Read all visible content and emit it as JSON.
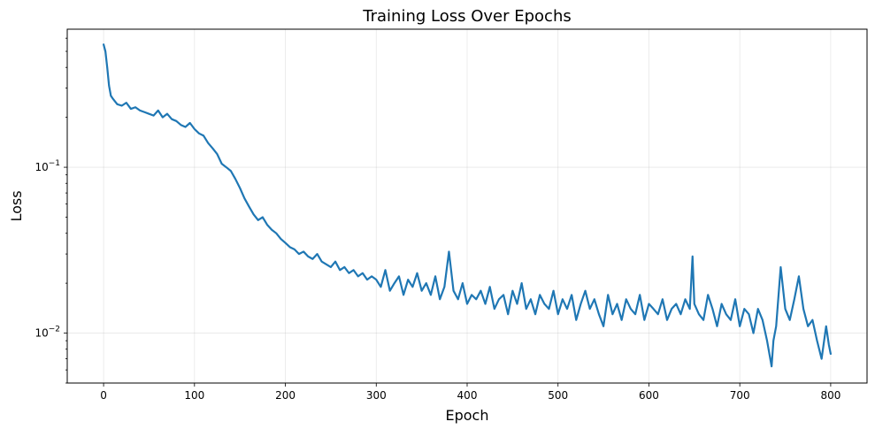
{
  "chart_data": {
    "type": "line",
    "title": "Training Loss Over Epochs",
    "xlabel": "Epoch",
    "ylabel": "Loss",
    "xlim": [
      -40,
      840
    ],
    "ylim": [
      0.005,
      0.68
    ],
    "yscale": "log",
    "grid": true,
    "series_color": "#1f77b4",
    "x_ticks": [
      {
        "value": 0,
        "label": "0"
      },
      {
        "value": 100,
        "label": "100"
      },
      {
        "value": 200,
        "label": "200"
      },
      {
        "value": 300,
        "label": "300"
      },
      {
        "value": 400,
        "label": "400"
      },
      {
        "value": 500,
        "label": "500"
      },
      {
        "value": 600,
        "label": "600"
      },
      {
        "value": 700,
        "label": "700"
      },
      {
        "value": 800,
        "label": "800"
      }
    ],
    "y_ticks": [
      {
        "value": 0.1,
        "label_base": "10",
        "label_exp": "−1"
      },
      {
        "value": 0.01,
        "label_base": "10",
        "label_exp": "−2"
      }
    ],
    "series": [
      {
        "x": [
          0,
          2,
          4,
          6,
          8,
          10,
          15,
          20,
          25,
          30,
          35,
          40,
          45,
          50,
          55,
          60,
          65,
          70,
          75,
          80,
          85,
          90,
          95,
          100,
          105,
          110,
          115,
          120,
          125,
          130,
          135,
          140,
          145,
          150,
          155,
          160,
          165,
          170,
          175,
          180,
          185,
          190,
          195,
          200,
          205,
          210,
          215,
          220,
          225,
          230,
          235,
          240,
          245,
          250,
          255,
          260,
          265,
          270,
          275,
          280,
          285,
          290,
          295,
          300,
          305,
          310,
          315,
          320,
          325,
          330,
          335,
          340,
          345,
          350,
          355,
          360,
          365,
          370,
          375,
          380,
          385,
          390,
          395,
          400,
          405,
          410,
          415,
          420,
          425,
          430,
          435,
          440,
          445,
          450,
          455,
          460,
          465,
          470,
          475,
          480,
          485,
          490,
          495,
          500,
          505,
          510,
          515,
          520,
          525,
          530,
          535,
          540,
          545,
          550,
          555,
          560,
          565,
          570,
          575,
          580,
          585,
          590,
          595,
          600,
          605,
          610,
          615,
          620,
          625,
          630,
          635,
          640,
          645,
          648,
          650,
          655,
          660,
          665,
          670,
          675,
          680,
          685,
          690,
          695,
          700,
          705,
          710,
          715,
          720,
          725,
          730,
          735,
          737,
          740,
          745,
          750,
          755,
          760,
          765,
          770,
          775,
          780,
          785,
          790,
          795,
          798,
          800
        ],
        "y": [
          0.55,
          0.5,
          0.4,
          0.31,
          0.27,
          0.26,
          0.24,
          0.235,
          0.245,
          0.225,
          0.23,
          0.22,
          0.215,
          0.21,
          0.205,
          0.22,
          0.2,
          0.21,
          0.195,
          0.19,
          0.18,
          0.175,
          0.185,
          0.17,
          0.16,
          0.155,
          0.14,
          0.13,
          0.12,
          0.105,
          0.1,
          0.095,
          0.085,
          0.075,
          0.065,
          0.058,
          0.052,
          0.048,
          0.05,
          0.045,
          0.042,
          0.04,
          0.037,
          0.035,
          0.033,
          0.032,
          0.03,
          0.031,
          0.029,
          0.028,
          0.03,
          0.027,
          0.026,
          0.025,
          0.027,
          0.024,
          0.025,
          0.023,
          0.024,
          0.022,
          0.023,
          0.021,
          0.022,
          0.021,
          0.019,
          0.024,
          0.018,
          0.02,
          0.022,
          0.017,
          0.021,
          0.019,
          0.023,
          0.018,
          0.02,
          0.017,
          0.022,
          0.016,
          0.019,
          0.031,
          0.018,
          0.016,
          0.02,
          0.015,
          0.017,
          0.016,
          0.018,
          0.015,
          0.019,
          0.014,
          0.016,
          0.017,
          0.013,
          0.018,
          0.015,
          0.02,
          0.014,
          0.016,
          0.013,
          0.017,
          0.015,
          0.014,
          0.018,
          0.013,
          0.016,
          0.014,
          0.017,
          0.012,
          0.015,
          0.018,
          0.014,
          0.016,
          0.013,
          0.011,
          0.017,
          0.013,
          0.015,
          0.012,
          0.016,
          0.014,
          0.013,
          0.017,
          0.012,
          0.015,
          0.014,
          0.013,
          0.016,
          0.012,
          0.014,
          0.015,
          0.013,
          0.016,
          0.014,
          0.029,
          0.015,
          0.013,
          0.012,
          0.017,
          0.014,
          0.011,
          0.015,
          0.013,
          0.012,
          0.016,
          0.011,
          0.014,
          0.013,
          0.01,
          0.014,
          0.012,
          0.009,
          0.0063,
          0.009,
          0.011,
          0.025,
          0.014,
          0.012,
          0.016,
          0.022,
          0.014,
          0.011,
          0.012,
          0.009,
          0.007,
          0.011,
          0.0085,
          0.0075
        ]
      }
    ]
  }
}
